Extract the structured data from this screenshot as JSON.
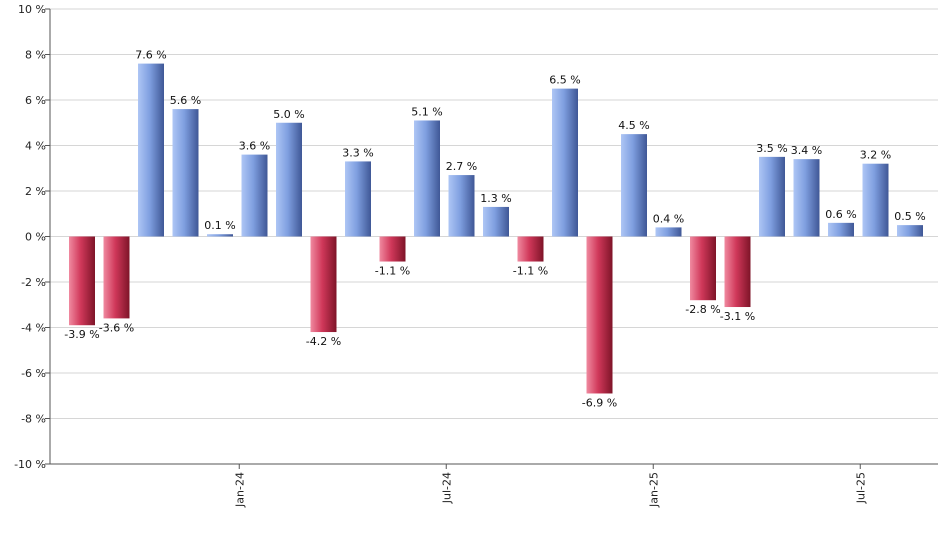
{
  "chart_data": {
    "type": "bar",
    "x_tick_labels": [
      "Jan-24",
      "Jul-24",
      "Jan-25",
      "Jul-25"
    ],
    "x_tick_positions": [
      5,
      11,
      17,
      23
    ],
    "values": [
      -3.9,
      -3.6,
      7.6,
      5.6,
      0.1,
      3.6,
      5.0,
      -4.2,
      3.3,
      -1.1,
      5.1,
      2.7,
      1.3,
      -1.1,
      6.5,
      -6.9,
      4.5,
      0.4,
      -2.8,
      -3.1,
      3.5,
      3.4,
      0.6,
      3.2,
      0.5
    ],
    "data_labels": [
      "-3.9 %",
      "-3.6 %",
      "7.6 %",
      "5.6 %",
      "0.1 %",
      "3.6 %",
      "5.0 %",
      "-4.2 %",
      "3.3 %",
      "-1.1 %",
      "5.1 %",
      "2.7 %",
      "1.3 %",
      "-1.1 %",
      "6.5 %",
      "-6.9 %",
      "4.5 %",
      "0.4 %",
      "-2.8 %",
      "-3.1 %",
      "3.5 %",
      "3.4 %",
      "0.6 %",
      "3.2 %",
      "0.5 %"
    ],
    "y_ticks": [
      -10,
      -8,
      -6,
      -4,
      -2,
      0,
      2,
      4,
      6,
      8,
      10
    ],
    "y_tick_labels": [
      "-10 %",
      "-8 %",
      "-6 %",
      "-4 %",
      "-2 %",
      "0 %",
      "2 %",
      "4 %",
      "6 %",
      "8 %",
      "10 %"
    ],
    "ylim": [
      -10,
      10
    ],
    "grid": true,
    "legend": "none",
    "colors": {
      "positive": "#6f8fd8",
      "negative": "#c8334f",
      "grid": "#d6d6d6",
      "axis": "#555555"
    }
  }
}
